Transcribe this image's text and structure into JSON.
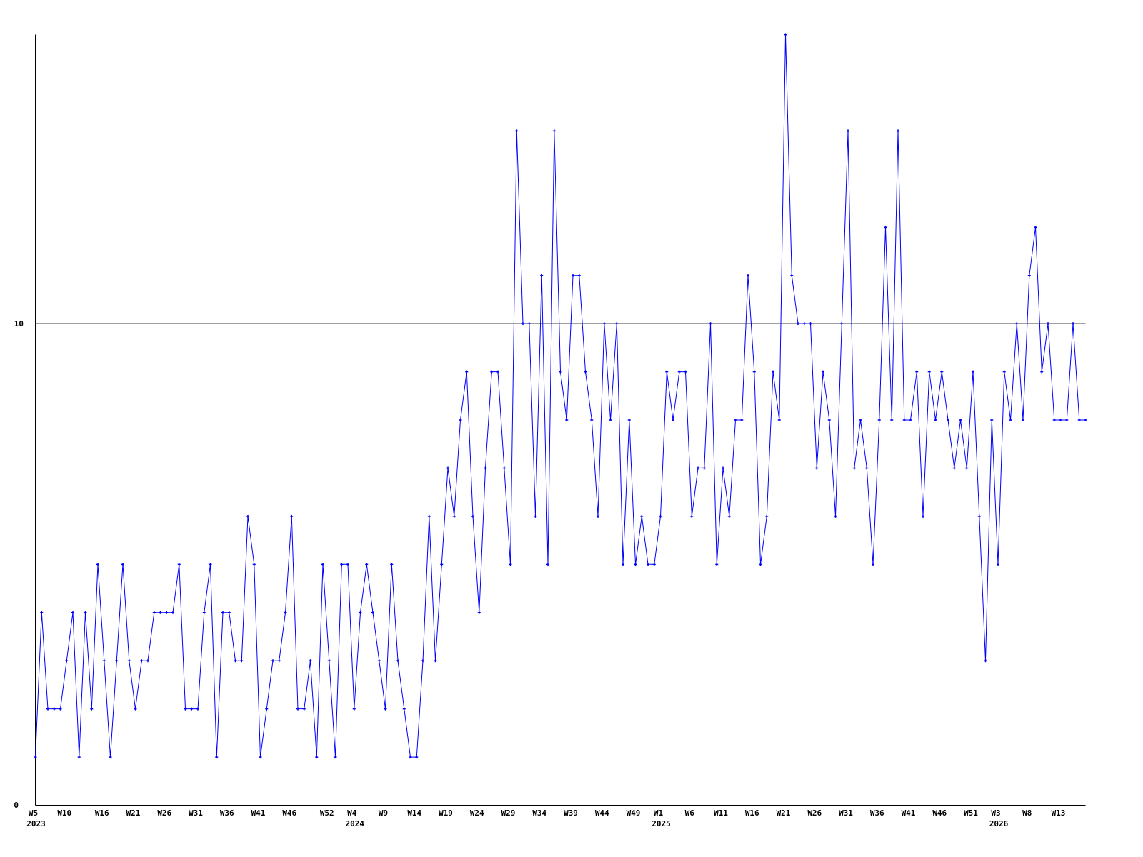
{
  "chart_data": {
    "type": "line",
    "title": "",
    "xlabel": "",
    "ylabel": "",
    "ylim": [
      0,
      16
    ],
    "y_tick_labels": [
      "0",
      "10"
    ],
    "reference_line": 10,
    "grid": false,
    "legend": "none",
    "colors": {
      "series": "#0000ff",
      "axis": "#000000",
      "reference": "#000000"
    },
    "x_start": "2023 W5",
    "x_tick_labels": [
      {
        "index": 0,
        "label": "W5",
        "year": "2023"
      },
      {
        "index": 5,
        "label": "W10"
      },
      {
        "index": 11,
        "label": "W16"
      },
      {
        "index": 16,
        "label": "W21"
      },
      {
        "index": 21,
        "label": "W26"
      },
      {
        "index": 26,
        "label": "W31"
      },
      {
        "index": 31,
        "label": "W36"
      },
      {
        "index": 36,
        "label": "W41"
      },
      {
        "index": 41,
        "label": "W46"
      },
      {
        "index": 47,
        "label": "W52"
      },
      {
        "index": 51,
        "label": "W4",
        "year": "2024"
      },
      {
        "index": 56,
        "label": "W9"
      },
      {
        "index": 61,
        "label": "W14"
      },
      {
        "index": 66,
        "label": "W19"
      },
      {
        "index": 71,
        "label": "W24"
      },
      {
        "index": 76,
        "label": "W29"
      },
      {
        "index": 81,
        "label": "W34"
      },
      {
        "index": 86,
        "label": "W39"
      },
      {
        "index": 91,
        "label": "W44"
      },
      {
        "index": 96,
        "label": "W49"
      },
      {
        "index": 100,
        "label": "W1",
        "year": "2025"
      },
      {
        "index": 105,
        "label": "W6"
      },
      {
        "index": 110,
        "label": "W11"
      },
      {
        "index": 115,
        "label": "W16"
      },
      {
        "index": 120,
        "label": "W21"
      },
      {
        "index": 125,
        "label": "W26"
      },
      {
        "index": 130,
        "label": "W31"
      },
      {
        "index": 135,
        "label": "W36"
      },
      {
        "index": 140,
        "label": "W41"
      },
      {
        "index": 145,
        "label": "W46"
      },
      {
        "index": 150,
        "label": "W51"
      },
      {
        "index": 154,
        "label": "W3",
        "year": "2026"
      },
      {
        "index": 159,
        "label": "W8"
      },
      {
        "index": 164,
        "label": "W13"
      }
    ],
    "series": [
      {
        "values": [
          1,
          4,
          2,
          2,
          2,
          3,
          4,
          1,
          4,
          2,
          5,
          3,
          1,
          3,
          5,
          3,
          2,
          3,
          3,
          4,
          4,
          4,
          4,
          5,
          2,
          2,
          2,
          4,
          5,
          1,
          4,
          4,
          3,
          3,
          6,
          5,
          1,
          2,
          3,
          3,
          4,
          6,
          2,
          2,
          3,
          1,
          5,
          3,
          1,
          5,
          5,
          2,
          4,
          5,
          4,
          3,
          2,
          5,
          3,
          2,
          1,
          1,
          3,
          6,
          3,
          5,
          7,
          6,
          8,
          9,
          6,
          4,
          7,
          9,
          9,
          7,
          5,
          14,
          10,
          10,
          6,
          11,
          5,
          14,
          9,
          8,
          11,
          11,
          9,
          8,
          6,
          10,
          8,
          10,
          5,
          8,
          5,
          6,
          5,
          5,
          6,
          9,
          8,
          9,
          9,
          6,
          7,
          7,
          10,
          5,
          7,
          6,
          8,
          8,
          11,
          9,
          5,
          6,
          9,
          8,
          16,
          11,
          10,
          10,
          10,
          7,
          9,
          8,
          6,
          10,
          14,
          7,
          8,
          7,
          5,
          8,
          12,
          8,
          14,
          8,
          8,
          9,
          6,
          9,
          8,
          9,
          8,
          7,
          8,
          7,
          9,
          6,
          3,
          8,
          5,
          9,
          8,
          10,
          8,
          11,
          12,
          9,
          10,
          8,
          8,
          8,
          10,
          8,
          8
        ]
      }
    ]
  }
}
